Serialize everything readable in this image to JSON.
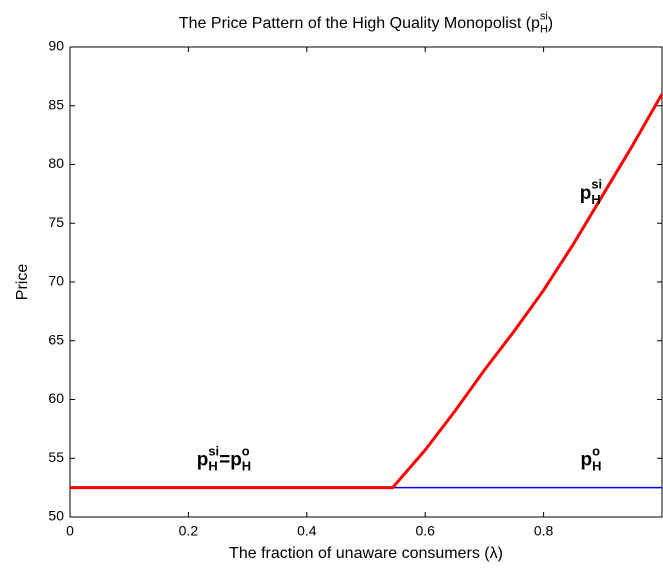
{
  "chart_data": {
    "type": "line",
    "title": [
      {
        "t": "The Price Pattern of the High Quality Monopolist (p",
        "pos": "base"
      },
      {
        "t": "si",
        "pos": "sup"
      },
      {
        "t": "H",
        "pos": "sub"
      },
      {
        "t": ")",
        "pos": "base"
      }
    ],
    "xlabel": "The fraction of unaware consumers (λ)",
    "ylabel": "Price",
    "xlim": [
      0,
      1
    ],
    "ylim": [
      50,
      90
    ],
    "xticks": [
      0,
      0.2,
      0.4,
      0.6,
      0.8
    ],
    "yticks": [
      50,
      55,
      60,
      65,
      70,
      75,
      80,
      85,
      90
    ],
    "series": [
      {
        "color": "#0000ff",
        "x": [
          0,
          1
        ],
        "values": [
          52.5,
          52.5
        ]
      },
      {
        "color": "#ff0000",
        "x": [
          0,
          0.545,
          0.6,
          0.65,
          0.7,
          0.75,
          0.8,
          0.85,
          0.9,
          0.95,
          1.0
        ],
        "values": [
          52.5,
          52.5,
          55.7,
          59,
          62.5,
          65.8,
          69.3,
          73.2,
          77.4,
          81.6,
          86
        ]
      }
    ],
    "annotations": [
      {
        "x": 0.88,
        "y": 77.5,
        "text": [
          {
            "t": "p",
            "pos": "base"
          },
          {
            "t": "si",
            "pos": "sup"
          },
          {
            "t": "H",
            "pos": "sub"
          }
        ]
      },
      {
        "x": 0.88,
        "y": 54.8,
        "text": [
          {
            "t": "p",
            "pos": "base"
          },
          {
            "t": "o",
            "pos": "sup"
          },
          {
            "t": "H",
            "pos": "sub"
          }
        ]
      },
      {
        "x": 0.26,
        "y": 54.8,
        "text": [
          {
            "t": "p",
            "pos": "base"
          },
          {
            "t": "si",
            "pos": "sup"
          },
          {
            "t": "H",
            "pos": "sub"
          },
          {
            "t": "=p",
            "pos": "base"
          },
          {
            "t": "o",
            "pos": "sup"
          },
          {
            "t": "H",
            "pos": "sub"
          }
        ]
      }
    ]
  }
}
